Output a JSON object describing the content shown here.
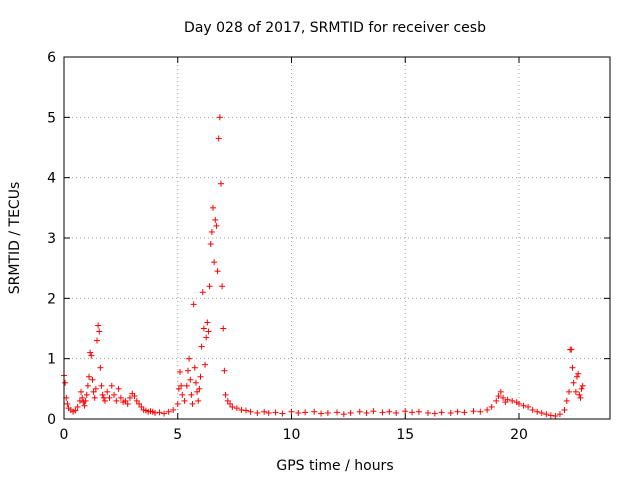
{
  "chart_data": {
    "type": "scatter",
    "title": "Day 028 of 2017, SRMTID for receiver cesb",
    "xlabel": "GPS time / hours",
    "ylabel": "SRMTID / TECUs",
    "xlim": [
      0,
      24
    ],
    "ylim": [
      0,
      6
    ],
    "xticks": [
      0,
      5,
      10,
      15,
      20
    ],
    "yticks": [
      0,
      1,
      2,
      3,
      4,
      5,
      6
    ],
    "grid": true,
    "marker": "plus",
    "series": [
      {
        "color": "#ff0000",
        "points": [
          [
            0.0,
            0.72
          ],
          [
            0.05,
            0.6
          ],
          [
            0.1,
            0.35
          ],
          [
            0.15,
            0.25
          ],
          [
            0.2,
            0.18
          ],
          [
            0.3,
            0.15
          ],
          [
            0.4,
            0.12
          ],
          [
            0.5,
            0.14
          ],
          [
            0.6,
            0.2
          ],
          [
            0.7,
            0.3
          ],
          [
            0.75,
            0.45
          ],
          [
            0.8,
            0.35
          ],
          [
            0.85,
            0.28
          ],
          [
            0.9,
            0.22
          ],
          [
            0.95,
            0.3
          ],
          [
            1.0,
            0.4
          ],
          [
            1.05,
            0.55
          ],
          [
            1.1,
            0.7
          ],
          [
            1.15,
            1.1
          ],
          [
            1.2,
            1.05
          ],
          [
            1.25,
            0.65
          ],
          [
            1.3,
            0.45
          ],
          [
            1.35,
            0.35
          ],
          [
            1.4,
            0.5
          ],
          [
            1.45,
            1.3
          ],
          [
            1.5,
            1.55
          ],
          [
            1.55,
            1.45
          ],
          [
            1.6,
            0.85
          ],
          [
            1.65,
            0.55
          ],
          [
            1.7,
            0.4
          ],
          [
            1.75,
            0.35
          ],
          [
            1.8,
            0.3
          ],
          [
            1.9,
            0.45
          ],
          [
            2.0,
            0.35
          ],
          [
            2.1,
            0.55
          ],
          [
            2.2,
            0.4
          ],
          [
            2.3,
            0.3
          ],
          [
            2.4,
            0.5
          ],
          [
            2.5,
            0.35
          ],
          [
            2.6,
            0.28
          ],
          [
            2.7,
            0.3
          ],
          [
            2.8,
            0.25
          ],
          [
            2.9,
            0.35
          ],
          [
            3.0,
            0.42
          ],
          [
            3.1,
            0.38
          ],
          [
            3.2,
            0.3
          ],
          [
            3.3,
            0.25
          ],
          [
            3.4,
            0.2
          ],
          [
            3.5,
            0.15
          ],
          [
            3.6,
            0.14
          ],
          [
            3.7,
            0.12
          ],
          [
            3.8,
            0.13
          ],
          [
            3.9,
            0.12
          ],
          [
            4.0,
            0.1
          ],
          [
            4.2,
            0.11
          ],
          [
            4.4,
            0.09
          ],
          [
            4.6,
            0.12
          ],
          [
            4.8,
            0.15
          ],
          [
            5.0,
            0.25
          ],
          [
            5.05,
            0.5
          ],
          [
            5.1,
            0.78
          ],
          [
            5.15,
            0.55
          ],
          [
            5.2,
            0.4
          ],
          [
            5.3,
            0.3
          ],
          [
            5.4,
            0.55
          ],
          [
            5.45,
            0.8
          ],
          [
            5.5,
            1.0
          ],
          [
            5.55,
            0.65
          ],
          [
            5.6,
            0.4
          ],
          [
            5.65,
            0.25
          ],
          [
            5.7,
            1.9
          ],
          [
            5.75,
            0.85
          ],
          [
            5.8,
            0.6
          ],
          [
            5.85,
            0.45
          ],
          [
            5.9,
            0.3
          ],
          [
            5.95,
            0.5
          ],
          [
            6.0,
            0.7
          ],
          [
            6.05,
            1.2
          ],
          [
            6.1,
            2.1
          ],
          [
            6.15,
            1.5
          ],
          [
            6.2,
            0.9
          ],
          [
            6.25,
            1.35
          ],
          [
            6.3,
            1.6
          ],
          [
            6.35,
            1.45
          ],
          [
            6.4,
            2.2
          ],
          [
            6.45,
            2.9
          ],
          [
            6.5,
            3.1
          ],
          [
            6.55,
            3.5
          ],
          [
            6.6,
            2.6
          ],
          [
            6.65,
            3.3
          ],
          [
            6.7,
            3.2
          ],
          [
            6.75,
            2.45
          ],
          [
            6.8,
            4.65
          ],
          [
            6.85,
            5.0
          ],
          [
            6.9,
            3.9
          ],
          [
            6.95,
            2.2
          ],
          [
            7.0,
            1.5
          ],
          [
            7.05,
            0.8
          ],
          [
            7.1,
            0.4
          ],
          [
            7.2,
            0.3
          ],
          [
            7.3,
            0.25
          ],
          [
            7.4,
            0.2
          ],
          [
            7.6,
            0.18
          ],
          [
            7.8,
            0.15
          ],
          [
            8.0,
            0.14
          ],
          [
            8.2,
            0.12
          ],
          [
            8.5,
            0.1
          ],
          [
            8.8,
            0.12
          ],
          [
            9.0,
            0.1
          ],
          [
            9.3,
            0.11
          ],
          [
            9.6,
            0.09
          ],
          [
            10.0,
            0.12
          ],
          [
            10.3,
            0.1
          ],
          [
            10.6,
            0.11
          ],
          [
            11.0,
            0.12
          ],
          [
            11.3,
            0.09
          ],
          [
            11.6,
            0.1
          ],
          [
            12.0,
            0.11
          ],
          [
            12.3,
            0.08
          ],
          [
            12.6,
            0.1
          ],
          [
            13.0,
            0.12
          ],
          [
            13.3,
            0.1
          ],
          [
            13.6,
            0.13
          ],
          [
            14.0,
            0.11
          ],
          [
            14.3,
            0.12
          ],
          [
            14.6,
            0.1
          ],
          [
            15.0,
            0.13
          ],
          [
            15.3,
            0.11
          ],
          [
            15.6,
            0.12
          ],
          [
            16.0,
            0.1
          ],
          [
            16.3,
            0.09
          ],
          [
            16.6,
            0.11
          ],
          [
            17.0,
            0.1
          ],
          [
            17.3,
            0.12
          ],
          [
            17.6,
            0.11
          ],
          [
            18.0,
            0.13
          ],
          [
            18.3,
            0.12
          ],
          [
            18.6,
            0.15
          ],
          [
            18.8,
            0.2
          ],
          [
            19.0,
            0.3
          ],
          [
            19.1,
            0.38
          ],
          [
            19.2,
            0.45
          ],
          [
            19.3,
            0.35
          ],
          [
            19.4,
            0.28
          ],
          [
            19.5,
            0.32
          ],
          [
            19.7,
            0.3
          ],
          [
            19.9,
            0.28
          ],
          [
            20.0,
            0.25
          ],
          [
            20.2,
            0.22
          ],
          [
            20.4,
            0.2
          ],
          [
            20.6,
            0.15
          ],
          [
            20.8,
            0.12
          ],
          [
            21.0,
            0.1
          ],
          [
            21.2,
            0.08
          ],
          [
            21.4,
            0.06
          ],
          [
            21.6,
            0.05
          ],
          [
            21.8,
            0.08
          ],
          [
            22.0,
            0.15
          ],
          [
            22.1,
            0.3
          ],
          [
            22.2,
            0.45
          ],
          [
            22.25,
            1.15
          ],
          [
            22.3,
            1.15
          ],
          [
            22.35,
            0.85
          ],
          [
            22.4,
            0.6
          ],
          [
            22.5,
            0.45
          ],
          [
            22.55,
            0.7
          ],
          [
            22.6,
            0.75
          ],
          [
            22.65,
            0.4
          ],
          [
            22.7,
            0.35
          ],
          [
            22.75,
            0.5
          ],
          [
            22.8,
            0.55
          ]
        ]
      }
    ]
  }
}
